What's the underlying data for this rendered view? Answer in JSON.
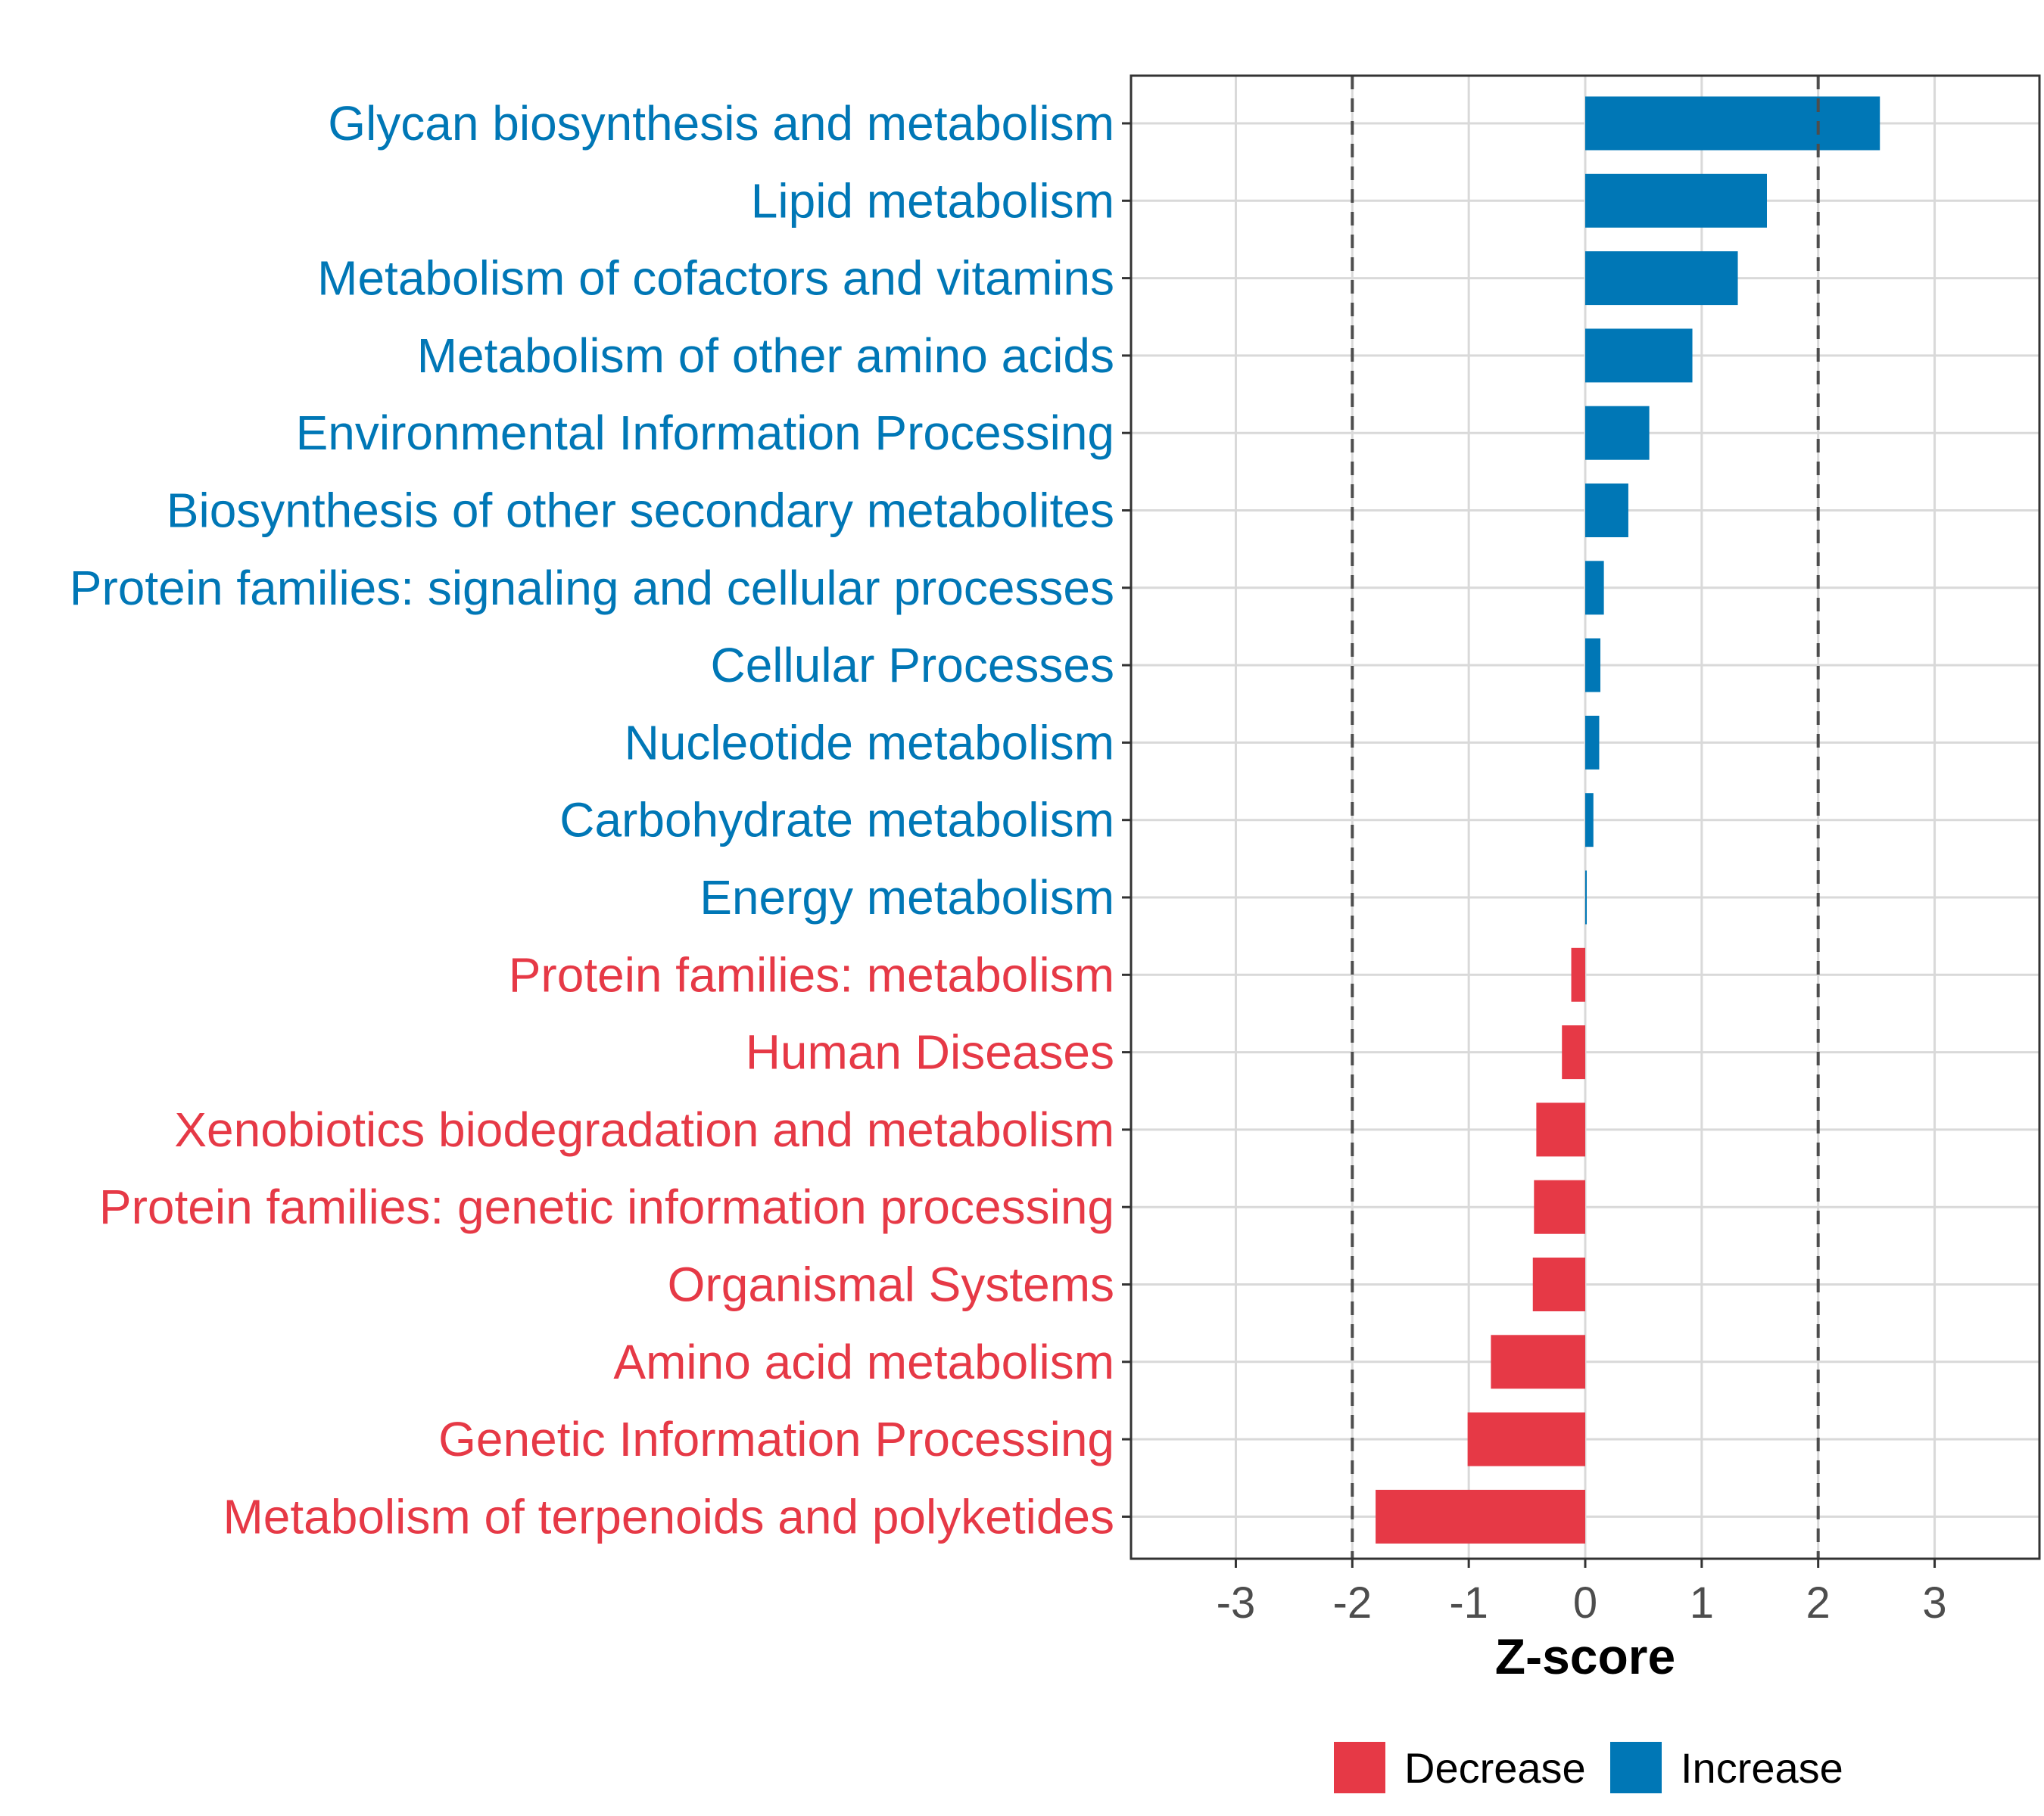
{
  "chart_data": {
    "type": "bar",
    "orientation": "horizontal",
    "title": "",
    "xlabel": "Z-score",
    "ylabel": "",
    "xlim": [
      -3.9,
      3.9
    ],
    "xticks": [
      -3,
      -2,
      -1,
      0,
      1,
      2,
      3
    ],
    "reference_lines": [
      -2,
      2
    ],
    "grid": true,
    "categories": [
      "Glycan biosynthesis and metabolism",
      "Lipid metabolism",
      "Metabolism of cofactors and vitamins",
      "Metabolism of other amino acids",
      "Environmental Information Processing",
      "Biosynthesis of other secondary metabolites",
      "Protein families: signaling and cellular processes",
      "Cellular Processes",
      "Nucleotide metabolism",
      "Carbohydrate metabolism",
      "Energy metabolism",
      "Protein families: metabolism",
      "Human Diseases",
      "Xenobiotics biodegradation and metabolism",
      "Protein families: genetic information processing",
      "Organismal Systems",
      "Amino acid metabolism",
      "Genetic Information Processing",
      "Metabolism of terpenoids and polyketides"
    ],
    "values": [
      2.53,
      1.56,
      1.31,
      0.92,
      0.55,
      0.37,
      0.16,
      0.13,
      0.12,
      0.07,
      0.01,
      -0.12,
      -0.2,
      -0.42,
      -0.44,
      -0.45,
      -0.81,
      -1.01,
      -1.8
    ],
    "groups": [
      "Increase",
      "Increase",
      "Increase",
      "Increase",
      "Increase",
      "Increase",
      "Increase",
      "Increase",
      "Increase",
      "Increase",
      "Increase",
      "Decrease",
      "Decrease",
      "Decrease",
      "Decrease",
      "Decrease",
      "Decrease",
      "Decrease",
      "Decrease"
    ],
    "legend": {
      "position": "bottom",
      "entries": [
        {
          "label": "Decrease",
          "color": "#E63946"
        },
        {
          "label": "Increase",
          "color": "#0077B6"
        }
      ]
    },
    "colors": {
      "Decrease": "#E63946",
      "Increase": "#0077B6"
    }
  }
}
